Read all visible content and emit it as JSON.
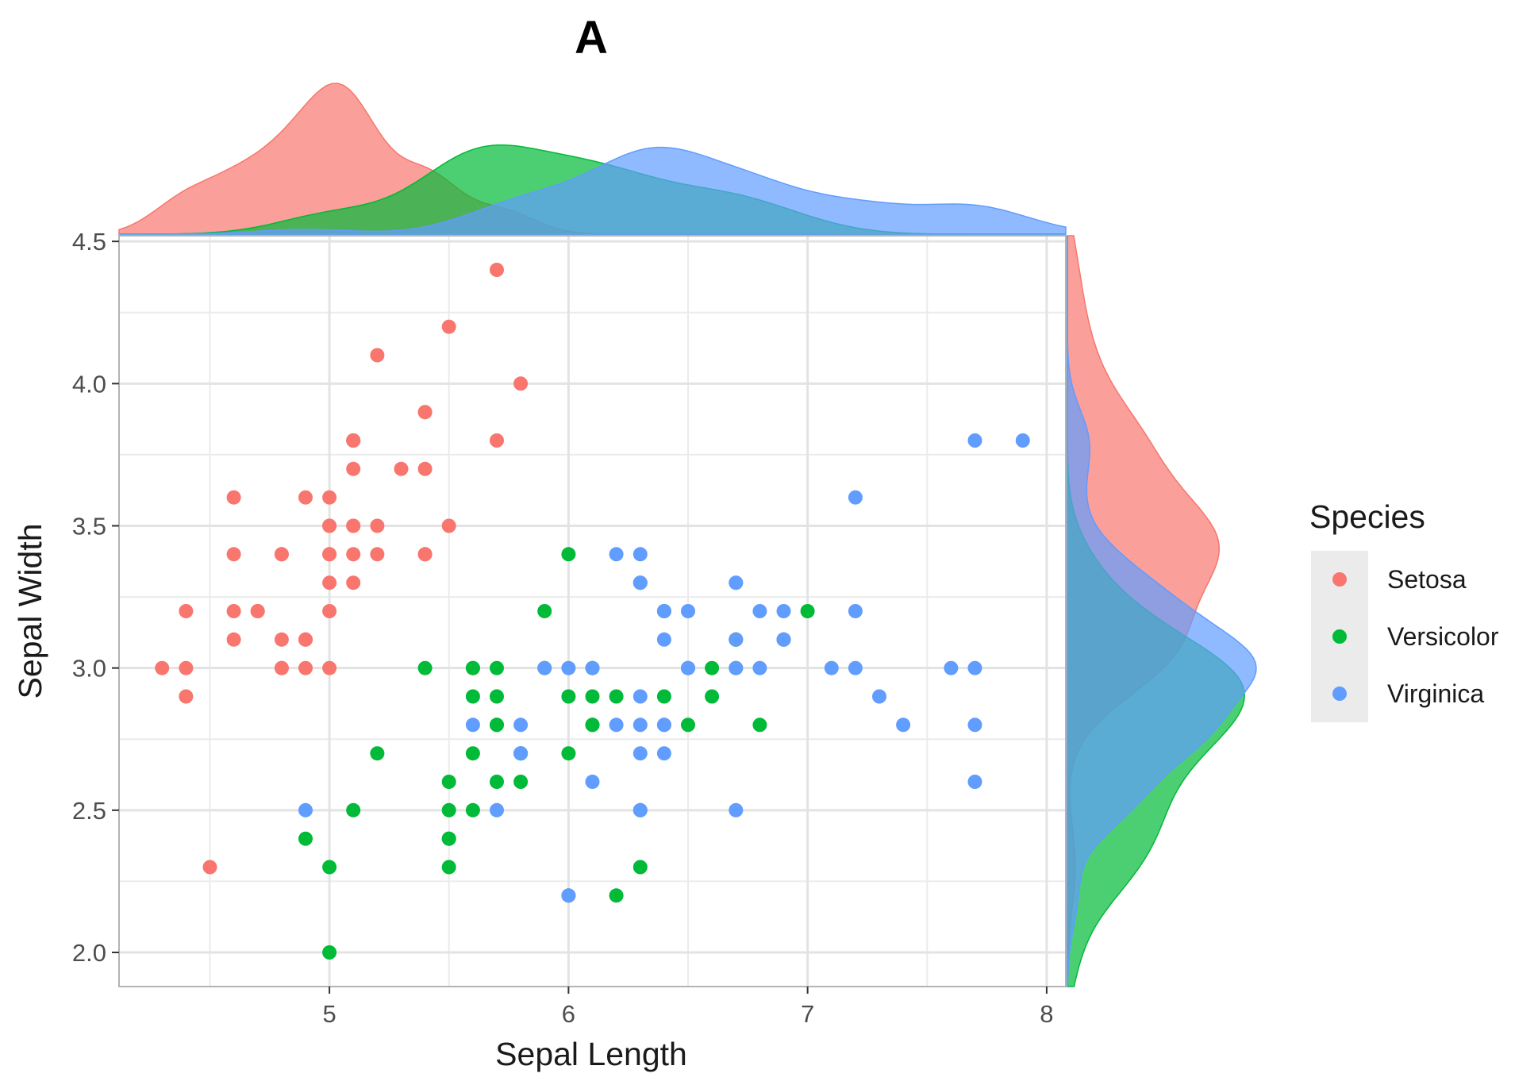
{
  "chart_data": {
    "type": "scatter",
    "title": "A",
    "xlabel": "Sepal Length",
    "ylabel": "Sepal Width",
    "xlim": [
      4.12,
      8.08
    ],
    "ylim": [
      1.88,
      4.52
    ],
    "x_ticks": [
      5,
      6,
      7,
      8
    ],
    "x_tick_labels": [
      "5",
      "6",
      "7",
      "8"
    ],
    "y_ticks": [
      2.0,
      2.5,
      3.0,
      3.5,
      4.0,
      4.5
    ],
    "y_tick_labels": [
      "2.0",
      "2.5",
      "3.0",
      "3.5",
      "4.0",
      "4.5"
    ],
    "grid": true,
    "marginal_density": true,
    "legend": {
      "title": "Species",
      "position": "right",
      "entries": [
        "Setosa",
        "Versicolor",
        "Virginica"
      ]
    },
    "series": [
      {
        "name": "Setosa",
        "color": "#F8766D",
        "points": [
          [
            5.1,
            3.5
          ],
          [
            4.9,
            3.0
          ],
          [
            4.7,
            3.2
          ],
          [
            4.6,
            3.1
          ],
          [
            5.0,
            3.6
          ],
          [
            5.4,
            3.9
          ],
          [
            4.6,
            3.4
          ],
          [
            5.0,
            3.4
          ],
          [
            4.4,
            2.9
          ],
          [
            4.9,
            3.1
          ],
          [
            5.4,
            3.7
          ],
          [
            4.8,
            3.4
          ],
          [
            4.8,
            3.0
          ],
          [
            4.3,
            3.0
          ],
          [
            5.8,
            4.0
          ],
          [
            5.7,
            4.4
          ],
          [
            5.4,
            3.9
          ],
          [
            5.1,
            3.5
          ],
          [
            5.7,
            3.8
          ],
          [
            5.1,
            3.8
          ],
          [
            5.4,
            3.4
          ],
          [
            5.1,
            3.7
          ],
          [
            4.6,
            3.6
          ],
          [
            5.1,
            3.3
          ],
          [
            4.8,
            3.4
          ],
          [
            5.0,
            3.0
          ],
          [
            5.0,
            3.4
          ],
          [
            5.2,
            3.5
          ],
          [
            5.2,
            3.4
          ],
          [
            4.7,
            3.2
          ],
          [
            4.8,
            3.1
          ],
          [
            5.4,
            3.4
          ],
          [
            5.2,
            4.1
          ],
          [
            5.5,
            4.2
          ],
          [
            4.9,
            3.1
          ],
          [
            5.0,
            3.2
          ],
          [
            5.5,
            3.5
          ],
          [
            4.9,
            3.6
          ],
          [
            4.4,
            3.0
          ],
          [
            5.1,
            3.4
          ],
          [
            5.0,
            3.5
          ],
          [
            4.5,
            2.3
          ],
          [
            4.4,
            3.2
          ],
          [
            5.0,
            3.5
          ],
          [
            5.1,
            3.8
          ],
          [
            4.8,
            3.0
          ],
          [
            5.1,
            3.8
          ],
          [
            4.6,
            3.2
          ],
          [
            5.3,
            3.7
          ],
          [
            5.0,
            3.3
          ]
        ]
      },
      {
        "name": "Versicolor",
        "color": "#00BA38",
        "points": [
          [
            7.0,
            3.2
          ],
          [
            6.4,
            3.2
          ],
          [
            6.9,
            3.1
          ],
          [
            5.5,
            2.3
          ],
          [
            6.5,
            2.8
          ],
          [
            5.7,
            2.8
          ],
          [
            6.3,
            3.3
          ],
          [
            4.9,
            2.4
          ],
          [
            6.6,
            2.9
          ],
          [
            5.2,
            2.7
          ],
          [
            5.0,
            2.0
          ],
          [
            5.9,
            3.0
          ],
          [
            6.0,
            2.2
          ],
          [
            6.1,
            2.9
          ],
          [
            5.6,
            2.9
          ],
          [
            6.7,
            3.1
          ],
          [
            5.6,
            3.0
          ],
          [
            5.8,
            2.7
          ],
          [
            6.2,
            2.2
          ],
          [
            5.6,
            2.5
          ],
          [
            5.9,
            3.2
          ],
          [
            6.1,
            2.8
          ],
          [
            6.3,
            2.5
          ],
          [
            6.1,
            2.8
          ],
          [
            6.4,
            2.9
          ],
          [
            6.6,
            3.0
          ],
          [
            6.8,
            2.8
          ],
          [
            6.7,
            3.0
          ],
          [
            6.0,
            2.9
          ],
          [
            5.7,
            2.6
          ],
          [
            5.5,
            2.4
          ],
          [
            5.5,
            2.4
          ],
          [
            5.8,
            2.7
          ],
          [
            6.0,
            2.7
          ],
          [
            5.4,
            3.0
          ],
          [
            6.0,
            3.4
          ],
          [
            6.7,
            3.1
          ],
          [
            6.3,
            2.3
          ],
          [
            5.6,
            3.0
          ],
          [
            5.5,
            2.5
          ],
          [
            5.5,
            2.6
          ],
          [
            6.1,
            3.0
          ],
          [
            5.8,
            2.6
          ],
          [
            5.0,
            2.3
          ],
          [
            5.6,
            2.7
          ],
          [
            5.7,
            3.0
          ],
          [
            5.7,
            2.9
          ],
          [
            6.2,
            2.9
          ],
          [
            5.1,
            2.5
          ],
          [
            5.7,
            2.8
          ]
        ]
      },
      {
        "name": "Virginica",
        "color": "#619CFF",
        "points": [
          [
            6.3,
            3.3
          ],
          [
            5.8,
            2.7
          ],
          [
            7.1,
            3.0
          ],
          [
            6.3,
            2.9
          ],
          [
            6.5,
            3.0
          ],
          [
            7.6,
            3.0
          ],
          [
            4.9,
            2.5
          ],
          [
            7.3,
            2.9
          ],
          [
            6.7,
            2.5
          ],
          [
            7.2,
            3.6
          ],
          [
            6.5,
            3.2
          ],
          [
            6.4,
            2.7
          ],
          [
            6.8,
            3.0
          ],
          [
            5.7,
            2.5
          ],
          [
            5.8,
            2.8
          ],
          [
            6.4,
            3.2
          ],
          [
            6.5,
            3.0
          ],
          [
            7.7,
            3.8
          ],
          [
            7.7,
            2.6
          ],
          [
            6.0,
            2.2
          ],
          [
            6.9,
            3.2
          ],
          [
            5.6,
            2.8
          ],
          [
            7.7,
            2.8
          ],
          [
            6.3,
            2.7
          ],
          [
            6.7,
            3.3
          ],
          [
            7.2,
            3.2
          ],
          [
            6.2,
            2.8
          ],
          [
            6.1,
            3.0
          ],
          [
            6.4,
            2.8
          ],
          [
            7.2,
            3.0
          ],
          [
            7.4,
            2.8
          ],
          [
            7.9,
            3.8
          ],
          [
            6.4,
            2.8
          ],
          [
            6.3,
            2.8
          ],
          [
            6.1,
            2.6
          ],
          [
            7.7,
            3.0
          ],
          [
            6.3,
            3.4
          ],
          [
            6.4,
            3.1
          ],
          [
            6.0,
            3.0
          ],
          [
            6.9,
            3.1
          ],
          [
            6.7,
            3.1
          ],
          [
            6.9,
            3.1
          ],
          [
            5.8,
            2.7
          ],
          [
            6.8,
            3.2
          ],
          [
            6.7,
            3.3
          ],
          [
            6.7,
            3.0
          ],
          [
            6.3,
            2.5
          ],
          [
            6.5,
            3.0
          ],
          [
            6.2,
            3.4
          ],
          [
            5.9,
            3.0
          ]
        ]
      }
    ]
  }
}
